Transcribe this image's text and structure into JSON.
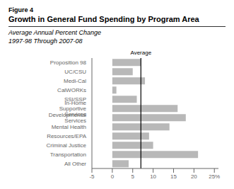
{
  "chart_data": {
    "type": "bar",
    "orientation": "horizontal",
    "title": [
      "Figure 4",
      "Growth in General Fund Spending by Program Area"
    ],
    "subtitle": [
      "Average Annual Percent Change",
      "1997-98 Through 2007-08"
    ],
    "categories": [
      "All Other",
      "Transportation",
      "Criminal Justice",
      "Resources/EPA",
      "Mental Health",
      "Developmental Services",
      "In-Home Supportive Services",
      "SSI/SSP",
      "CalWORKs",
      "Medi-Cal",
      "UC/CSU",
      "Proposition 98"
    ],
    "values": [
      4,
      21,
      10,
      9,
      14,
      18,
      16,
      6,
      1,
      8,
      5,
      7
    ],
    "color": "#b8b8b8",
    "xlim": [
      -5,
      26
    ],
    "xticks": [
      -5,
      0,
      5,
      10,
      15,
      20,
      {
        "value": 25,
        "label": "25%"
      }
    ],
    "grid": false,
    "annotations": [
      {
        "type": "vline",
        "x": 7,
        "label": "Average"
      }
    ]
  }
}
